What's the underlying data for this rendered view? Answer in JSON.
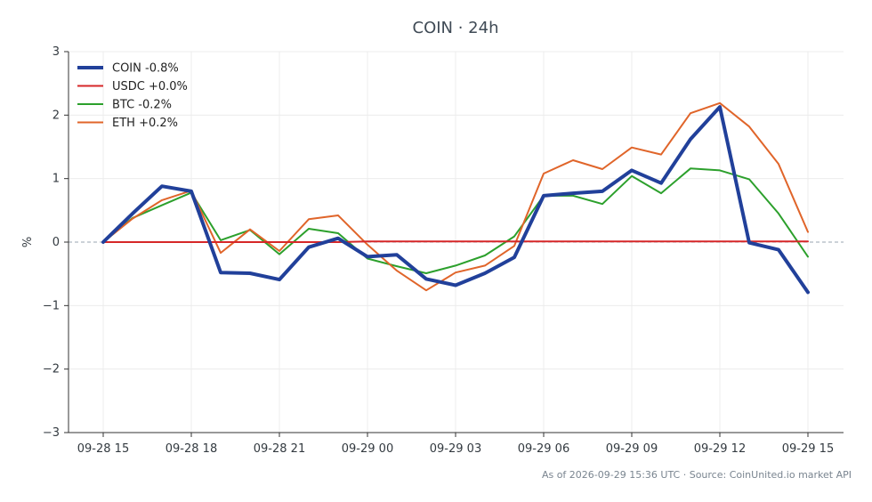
{
  "chart_data": {
    "type": "line",
    "title": "COIN · 24h",
    "xlabel": "",
    "ylabel": "%",
    "ylim": [
      -3,
      3
    ],
    "y_ticks": [
      3,
      2,
      1,
      0,
      -1,
      -2,
      -3
    ],
    "y_tick_labels": [
      "3",
      "2",
      "1",
      "0",
      "−1",
      "−2",
      "−3"
    ],
    "x": [
      "2026-09-28 15:00",
      "2026-09-28 16:00",
      "2026-09-28 17:00",
      "2026-09-28 18:00",
      "2026-09-28 19:00",
      "2026-09-28 20:00",
      "2026-09-28 21:00",
      "2026-09-28 22:00",
      "2026-09-28 23:00",
      "2026-09-29 00:00",
      "2026-09-29 01:00",
      "2026-09-29 02:00",
      "2026-09-29 03:00",
      "2026-09-29 04:00",
      "2026-09-29 05:00",
      "2026-09-29 06:00",
      "2026-09-29 07:00",
      "2026-09-29 08:00",
      "2026-09-29 09:00",
      "2026-09-29 10:00",
      "2026-09-29 11:00",
      "2026-09-29 12:00",
      "2026-09-29 13:00",
      "2026-09-29 14:00",
      "2026-09-29 15:00"
    ],
    "x_tick_labels": [
      "09-28 15",
      "09-28 18",
      "09-28 21",
      "09-29 00",
      "09-29 03",
      "09-29 06",
      "09-29 09",
      "09-29 12",
      "09-29 15"
    ],
    "x_tick_index": [
      0,
      3,
      6,
      9,
      12,
      15,
      18,
      21,
      24
    ],
    "grid": true,
    "zero_line": "dashed",
    "legend_position": "top-left",
    "series": [
      {
        "name": "COIN -0.8%",
        "color": "#21409a",
        "width": 4,
        "values": [
          0.0,
          0.45,
          0.88,
          0.8,
          -0.48,
          -0.49,
          -0.59,
          -0.08,
          0.06,
          -0.23,
          -0.2,
          -0.58,
          -0.68,
          -0.49,
          -0.24,
          0.73,
          0.77,
          0.8,
          1.13,
          0.93,
          1.62,
          2.13,
          -0.01,
          -0.12,
          -0.79
        ]
      },
      {
        "name": "USDC +0.0%",
        "color": "#d62728",
        "width": 2,
        "values": [
          0.0,
          0.0,
          0.0,
          0.0,
          0.0,
          0.0,
          0.0,
          0.0,
          0.0,
          0.01,
          0.01,
          0.01,
          0.01,
          0.01,
          0.01,
          0.01,
          0.01,
          0.01,
          0.01,
          0.01,
          0.01,
          0.01,
          0.01,
          0.01,
          0.01
        ]
      },
      {
        "name": "BTC -0.2%",
        "color": "#2ca02c",
        "width": 2,
        "values": [
          0.0,
          0.38,
          0.58,
          0.78,
          0.03,
          0.19,
          -0.19,
          0.21,
          0.14,
          -0.26,
          -0.38,
          -0.49,
          -0.37,
          -0.21,
          0.09,
          0.73,
          0.73,
          0.6,
          1.04,
          0.77,
          1.16,
          1.13,
          0.99,
          0.45,
          -0.23
        ]
      },
      {
        "name": "ETH +0.2%",
        "color": "#e0652a",
        "width": 2,
        "values": [
          0.0,
          0.37,
          0.66,
          0.81,
          -0.17,
          0.2,
          -0.14,
          0.36,
          0.42,
          -0.04,
          -0.45,
          -0.76,
          -0.48,
          -0.37,
          -0.06,
          1.08,
          1.29,
          1.15,
          1.49,
          1.38,
          2.03,
          2.19,
          1.82,
          1.23,
          0.16
        ]
      }
    ]
  },
  "footer": "As of 2026-09-29 15:36 UTC · Source: CoinUnited.io market API"
}
